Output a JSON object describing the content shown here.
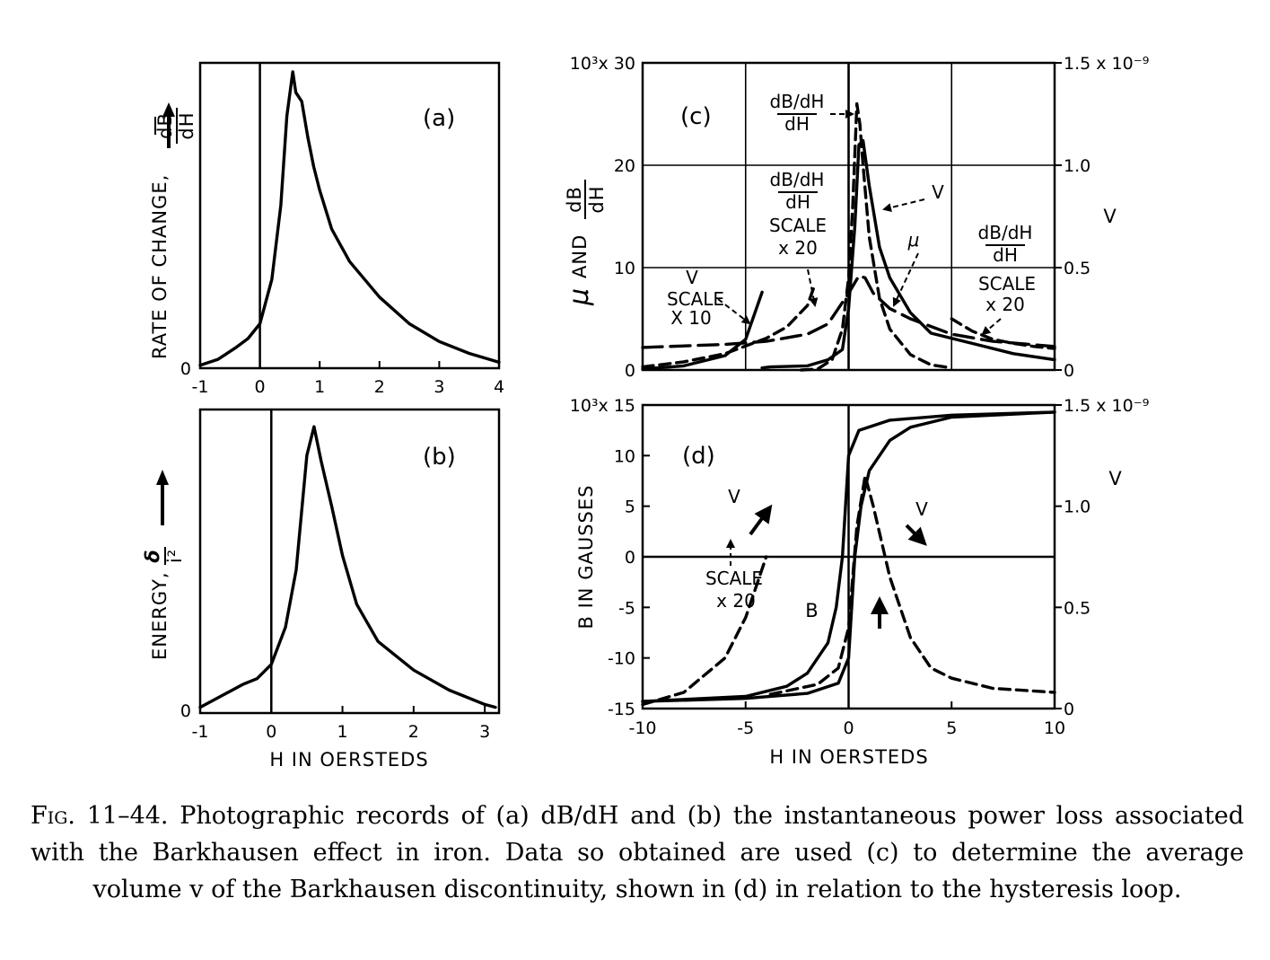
{
  "caption": {
    "fig_label": "Fig. 11–44.",
    "text": "Photographic records of (a) dB/dH and (b) the instantaneous power loss associated with the Barkhausen effect in iron. Data so obtained are used (c) to determine the average volume v of the Barkhausen discontinuity, shown in (d) in relation to the hysteresis loop."
  },
  "chart_data": [
    {
      "id": "a",
      "type": "line",
      "panel_label": "(a)",
      "ylabel": "RATE OF CHANGE, dB/dH →",
      "xlim": [
        -1,
        4
      ],
      "xticks": [
        "-1",
        "0",
        "1",
        "2",
        "3",
        "4"
      ],
      "yticks": [
        "0"
      ],
      "vline_x": 0,
      "series": [
        {
          "name": "dB/dH",
          "x": [
            -1,
            -0.7,
            -0.4,
            -0.2,
            0,
            0.2,
            0.35,
            0.45,
            0.55,
            0.6,
            0.7,
            0.8,
            0.9,
            1.0,
            1.2,
            1.5,
            2.0,
            2.5,
            3.0,
            3.5,
            4.0
          ],
          "y": [
            0.01,
            0.03,
            0.07,
            0.1,
            0.15,
            0.3,
            0.55,
            0.85,
            1.0,
            0.93,
            0.9,
            0.78,
            0.68,
            0.6,
            0.47,
            0.36,
            0.24,
            0.15,
            0.09,
            0.05,
            0.02
          ]
        }
      ]
    },
    {
      "id": "b",
      "type": "line",
      "panel_label": "(b)",
      "ylabel": "ENERGY, δ/i² →",
      "xlabel": "H IN OERSTEDS",
      "xlim": [
        -1,
        3.2
      ],
      "xticks": [
        "-1",
        "0",
        "1",
        "2",
        "3"
      ],
      "yticks": [
        "0"
      ],
      "vline_x": 0,
      "series": [
        {
          "name": "energy",
          "x": [
            -1,
            -0.7,
            -0.4,
            -0.2,
            0,
            0.2,
            0.35,
            0.5,
            0.6,
            0.7,
            0.85,
            1.0,
            1.2,
            1.5,
            2.0,
            2.5,
            3.0,
            3.15
          ],
          "y": [
            0.02,
            0.06,
            0.1,
            0.12,
            0.17,
            0.3,
            0.5,
            0.9,
            1.0,
            0.88,
            0.72,
            0.55,
            0.38,
            0.25,
            0.15,
            0.08,
            0.03,
            0.02
          ]
        }
      ]
    },
    {
      "id": "c",
      "type": "line",
      "panel_label": "(c)",
      "ylabel": "μ AND dB/dH",
      "ylabel_right": "V",
      "xlim": [
        -10,
        10
      ],
      "ylim": [
        0,
        30000
      ],
      "ylim_right": [
        0,
        1.5e-09
      ],
      "yticks": [
        "0",
        "10",
        "20",
        "10³x 30"
      ],
      "yticks_right": [
        "0",
        "0.5",
        "1.0",
        "1.5 x 10⁻⁹"
      ],
      "grid": true,
      "annotations": [
        "dB/dH",
        "V",
        "SCALE",
        "X 10",
        "dB/dH",
        "SCALE",
        "x 20",
        "V",
        "μ",
        "dB/dH",
        "SCALE",
        "x 20"
      ],
      "series": [
        {
          "name": "dB/dH",
          "style": "dashed",
          "x": [
            -2.3,
            -1.5,
            -0.8,
            -0.3,
            0,
            0.2,
            0.4,
            0.55,
            0.7,
            1.0,
            1.5,
            2.0,
            3.0,
            4.0,
            5.0
          ],
          "y": [
            0,
            100,
            1000,
            4000,
            9000,
            16000,
            26000,
            24000,
            20000,
            13000,
            7000,
            4000,
            1500,
            500,
            200
          ]
        },
        {
          "name": "dB/dH x20",
          "style": "dashed",
          "x": [
            -10,
            -8,
            -6,
            -4,
            -3,
            -2,
            -1.7
          ],
          "y": [
            300,
            800,
            1600,
            3100,
            4200,
            6300,
            8000
          ]
        },
        {
          "name": "dB/dH x20",
          "style": "dashed",
          "x": [
            5,
            6,
            7,
            8,
            9,
            10
          ],
          "y": [
            5000,
            3800,
            3000,
            2600,
            2300,
            2100
          ]
        },
        {
          "name": "V",
          "style": "solid",
          "x": [
            -4.2,
            -3.8,
            -2,
            -1,
            -0.3,
            0,
            0.3,
            0.5,
            0.7,
            1,
            1.5,
            2,
            3,
            4,
            6,
            8,
            10
          ],
          "y": [
            1e-11,
            1.5e-11,
            2e-11,
            5e-11,
            1e-10,
            3e-10,
            7e-10,
            1.1e-09,
            1.12e-09,
            9e-10,
            6e-10,
            4.5e-10,
            2.8e-10,
            1.8e-10,
            1.3e-10,
            8e-11,
            5e-11
          ]
        },
        {
          "name": "V x10",
          "style": "solid",
          "x": [
            -10,
            -8,
            -6,
            -5,
            -4.2
          ],
          "y": [
            5e-12,
            2e-11,
            7e-11,
            1.5e-10,
            3.8e-10
          ]
        },
        {
          "name": "μ",
          "style": "long-dashed",
          "x": [
            -10,
            -6,
            -4,
            -2,
            -1,
            0,
            0.5,
            0.8,
            1.2,
            2,
            3,
            5,
            7,
            10
          ],
          "y": [
            2200,
            2500,
            2800,
            3500,
            4500,
            7500,
            9200,
            9000,
            7500,
            6000,
            5000,
            3500,
            2800,
            2300
          ]
        }
      ]
    },
    {
      "id": "d",
      "type": "line",
      "panel_label": "(d)",
      "ylabel": "B IN GAUSSES",
      "ylabel_right": "V",
      "xlabel": "H IN OERSTEDS",
      "xlim": [
        -10,
        10
      ],
      "ylim": [
        -15000,
        15000
      ],
      "ylim_right": [
        0,
        1.5e-09
      ],
      "xticks": [
        "-10",
        "-5",
        "0",
        "5",
        "10"
      ],
      "yticks": [
        "-15",
        "-10",
        "-5",
        "0",
        "5",
        "10",
        "10³x 15"
      ],
      "yticks_right": [
        "0",
        "0.5",
        "1.0",
        "1.5 x 10⁻⁹"
      ],
      "annotations": [
        "V",
        "SCALE",
        "x 20",
        "V",
        "B"
      ],
      "series": [
        {
          "name": "B (decreasing H)",
          "style": "solid",
          "x": [
            10,
            5,
            2,
            0.5,
            0,
            -0.3,
            -0.6,
            -1,
            -2,
            -3,
            -5,
            -10
          ],
          "y": [
            14300,
            14000,
            13500,
            12500,
            10000,
            0,
            -5000,
            -8500,
            -11500,
            -12800,
            -13800,
            -14300
          ]
        },
        {
          "name": "B (increasing H)",
          "style": "solid",
          "x": [
            -10,
            -5,
            -2,
            -0.5,
            0,
            0.3,
            0.6,
            1,
            2,
            3,
            5,
            10
          ],
          "y": [
            -14300,
            -14000,
            -13500,
            -12500,
            -10000,
            0,
            5000,
            8500,
            11500,
            12800,
            13800,
            14300
          ]
        },
        {
          "name": "V",
          "style": "dashed",
          "x": [
            -3.8,
            -1.5,
            -0.5,
            0,
            0.4,
            0.8,
            1.2,
            2,
            3,
            4,
            5,
            7,
            10
          ],
          "y": [
            7e-11,
            1.2e-10,
            2e-10,
            4e-10,
            9e-10,
            1.15e-09,
            1e-09,
            6.5e-10,
            3.5e-10,
            2e-10,
            1.5e-10,
            1e-10,
            8e-11
          ]
        },
        {
          "name": "V x20",
          "style": "dashed",
          "x": [
            -10,
            -8,
            -6,
            -5,
            -4
          ],
          "y": [
            2e-11,
            8e-11,
            2.5e-10,
            4.5e-10,
            7.5e-10
          ]
        }
      ]
    }
  ]
}
